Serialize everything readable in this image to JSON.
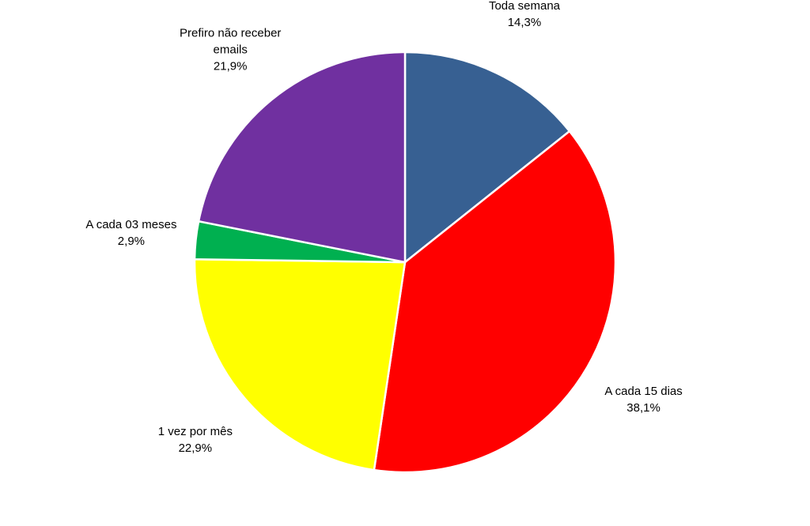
{
  "chart_data": {
    "type": "pie",
    "categories": [
      "Toda semana",
      "A cada 15 dias",
      "1 vez por mês",
      "A cada 03 meses",
      "Prefiro não receber emails"
    ],
    "values": [
      14.3,
      38.1,
      22.9,
      2.9,
      21.9
    ],
    "value_labels": [
      "14,3%",
      "38,1%",
      "22,9%",
      "2,9%",
      "21,9%"
    ],
    "colors": [
      "#376092",
      "#ff0000",
      "#ffff00",
      "#00b050",
      "#7030a0"
    ]
  }
}
